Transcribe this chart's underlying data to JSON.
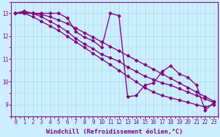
{
  "line_color": "#800080",
  "marker": "D",
  "marker_size": 2.5,
  "bg_color": "#cceeff",
  "grid_color": "#aadddd",
  "xlabel": "Windchill (Refroidissement éolien,°C)",
  "xlim": [
    -0.5,
    23.5
  ],
  "ylim": [
    8.5,
    13.5
  ],
  "xticks": [
    0,
    1,
    2,
    3,
    4,
    5,
    6,
    7,
    8,
    9,
    10,
    11,
    12,
    13,
    14,
    15,
    16,
    17,
    18,
    19,
    20,
    21,
    22,
    23
  ],
  "yticks": [
    9,
    10,
    11,
    12,
    13
  ],
  "tick_fontsize": 5.5,
  "xlabel_fontsize": 6.5,
  "line_width": 1.0,
  "series": [
    [
      13.0,
      13.1,
      13.0,
      13.0,
      13.0,
      13.0,
      12.8,
      12.2,
      11.95,
      11.8,
      11.5,
      13.0,
      12.9,
      9.35,
      9.4,
      9.85,
      9.95,
      10.45,
      10.7,
      10.35,
      10.2,
      9.85,
      8.75,
      9.1
    ],
    [
      13.0,
      13.05,
      13.0,
      12.95,
      12.85,
      12.7,
      12.55,
      12.35,
      12.15,
      11.95,
      11.75,
      11.55,
      11.35,
      11.15,
      10.95,
      10.75,
      10.55,
      10.35,
      10.15,
      9.95,
      9.75,
      9.55,
      9.35,
      9.15
    ],
    [
      13.0,
      13.0,
      13.0,
      12.85,
      12.65,
      12.45,
      12.2,
      11.9,
      11.65,
      11.45,
      11.2,
      11.05,
      10.9,
      10.65,
      10.45,
      10.25,
      10.1,
      9.95,
      9.85,
      9.7,
      9.55,
      9.4,
      9.25,
      9.1
    ],
    [
      13.0,
      13.0,
      12.85,
      12.65,
      12.45,
      12.25,
      12.0,
      11.75,
      11.5,
      11.25,
      11.0,
      10.75,
      10.5,
      10.25,
      10.0,
      9.75,
      9.55,
      9.4,
      9.3,
      9.2,
      9.1,
      9.0,
      8.9,
      9.0
    ]
  ]
}
